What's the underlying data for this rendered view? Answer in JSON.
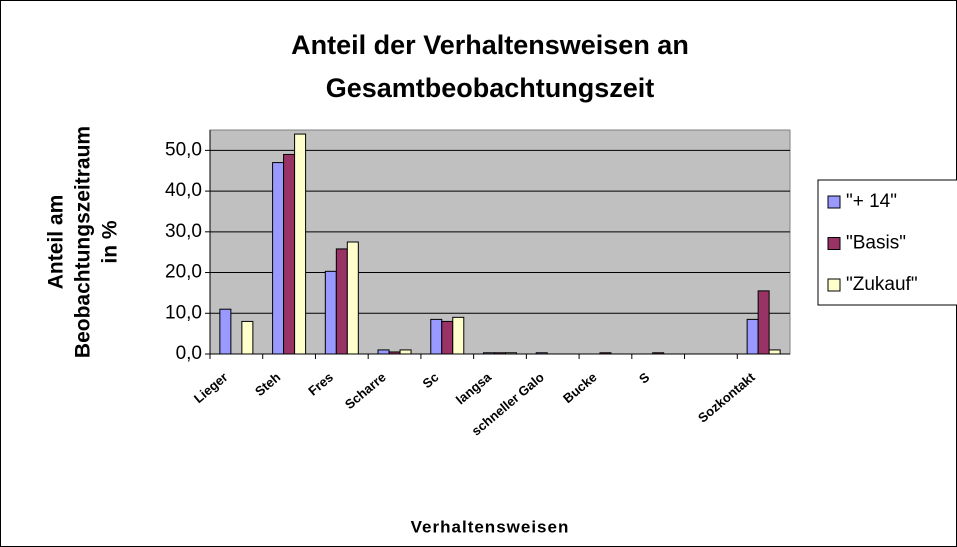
{
  "chart_data": {
    "type": "bar",
    "title": [
      "Anteil der Verhaltensweisen an",
      "Gesamtbeobachtungszeit"
    ],
    "y_label": [
      "Anteil am",
      "Beobachtungszeitraum",
      "in %"
    ],
    "x_label": "Verhaltensweisen",
    "categories": [
      "Lieger",
      "Steh",
      "Fres",
      "Scharre",
      "Sc",
      "langsa",
      "schneller Galo",
      "Bucke",
      "S",
      null,
      "Sozkontakt"
    ],
    "series": [
      {
        "name": "\"+ 14\"",
        "color": "#9999ff",
        "values": [
          11,
          47,
          20.3,
          1,
          8.5,
          0.3,
          0.3,
          0,
          0,
          0,
          8.5
        ]
      },
      {
        "name": "\"Basis\"",
        "color": "#993366",
        "values": [
          0,
          49,
          25.8,
          0.5,
          8,
          0.3,
          0,
          0.3,
          0.3,
          0,
          15.5
        ]
      },
      {
        "name": "\"Zukauf\"",
        "color": "#ffffcc",
        "values": [
          8,
          54,
          27.5,
          1,
          9,
          0.3,
          0,
          0,
          0,
          0,
          1
        ]
      }
    ],
    "ylim": [
      0,
      55
    ],
    "yticks": [
      {
        "value": 0,
        "label": "0,0"
      },
      {
        "value": 10,
        "label": "10,0"
      },
      {
        "value": 20,
        "label": "20,0"
      },
      {
        "value": 30,
        "label": "30,0"
      },
      {
        "value": 40,
        "label": "40,0"
      },
      {
        "value": 50,
        "label": "50,0"
      }
    ],
    "grid": true,
    "legend": "right",
    "plot_color": "#c0c0c0"
  }
}
